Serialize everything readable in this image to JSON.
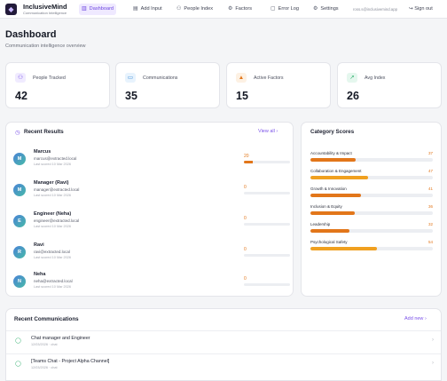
{
  "app": {
    "name": "InclusiveMind",
    "tagline": "Communication Intelligence",
    "logo_glyph": "◆"
  },
  "nav": {
    "items": [
      {
        "label": "Dashboard",
        "icon": "chart-icon",
        "glyph": "▥",
        "active": true
      },
      {
        "label": "Add Input",
        "icon": "document-icon",
        "glyph": "▤",
        "active": false
      },
      {
        "label": "People Index",
        "icon": "people-icon",
        "glyph": "⚇",
        "active": false
      },
      {
        "label": "Factors",
        "icon": "sliders-icon",
        "glyph": "⚙",
        "active": false
      },
      {
        "label": "Error Log",
        "icon": "file-icon",
        "glyph": "▢",
        "active": false
      },
      {
        "label": "Settings",
        "icon": "gear-icon",
        "glyph": "⚙",
        "active": false
      }
    ],
    "user_email": "ross.s@inclusivemind.app",
    "signout_label": "Sign out",
    "signout_glyph": "↪"
  },
  "header": {
    "title": "Dashboard",
    "subtitle": "Communication intelligence overview"
  },
  "stats": [
    {
      "label": "People Tracked",
      "value": "42",
      "icon": "people-icon",
      "glyph": "⚇",
      "color": "#7b52e8",
      "bg": "#f0ebff"
    },
    {
      "label": "Communications",
      "value": "35",
      "icon": "chat-icon",
      "glyph": "▭",
      "color": "#3c8fd8",
      "bg": "#e8f3fd"
    },
    {
      "label": "Active Factors",
      "value": "15",
      "icon": "sliders-icon",
      "glyph": "▲",
      "color": "#e2761a",
      "bg": "#fdf1e3"
    },
    {
      "label": "Avg Index",
      "value": "26",
      "icon": "trend-icon",
      "glyph": "↗",
      "color": "#2faf6d",
      "bg": "#e5f7ee"
    }
  ],
  "recent_results": {
    "title": "Recent Results",
    "view_all": "View all",
    "rows": [
      {
        "initial": "M",
        "name": "Marcus",
        "email": "marcus@extracted.local",
        "date": "Last scored 10 Mar 2026",
        "score": "20",
        "pct": 20
      },
      {
        "initial": "M",
        "name": "Manager (Ravi)",
        "email": "manager@extracted.local",
        "date": "Last scored 10 Mar 2026",
        "score": "0",
        "pct": 0
      },
      {
        "initial": "E",
        "name": "Engineer (Neha)",
        "email": "engineer@extracted.local",
        "date": "Last scored 10 Mar 2026",
        "score": "0",
        "pct": 0
      },
      {
        "initial": "R",
        "name": "Ravi",
        "email": "ravi@extracted.local",
        "date": "Last scored 10 Mar 2026",
        "score": "0",
        "pct": 0
      },
      {
        "initial": "N",
        "name": "Neha",
        "email": "neha@extracted.local",
        "date": "Last scored 10 Mar 2026",
        "score": "0",
        "pct": 0
      }
    ]
  },
  "category_scores": {
    "title": "Category Scores",
    "items": [
      {
        "name": "Accountability & Impact",
        "score": "37",
        "pct": 37,
        "color": "#e2761a"
      },
      {
        "name": "Collaboration & Engagement",
        "score": "47",
        "pct": 47,
        "color": "#f0a020"
      },
      {
        "name": "Growth & Innovation",
        "score": "41",
        "pct": 41,
        "color": "#e2761a"
      },
      {
        "name": "Inclusion & Equity",
        "score": "36",
        "pct": 36,
        "color": "#e2761a"
      },
      {
        "name": "Leadership",
        "score": "32",
        "pct": 32,
        "color": "#e2761a"
      },
      {
        "name": "Psychological Safety",
        "score": "54",
        "pct": 54,
        "color": "#f0a020"
      }
    ]
  },
  "recent_communications": {
    "title": "Recent Communications",
    "add_new": "Add new",
    "items": [
      {
        "title": "Chat manager and Engineer",
        "date": "12/03/2026 · chat",
        "icon": "chat-icon"
      },
      {
        "title": "[Teams Chat - Project Alpha Channel]",
        "date": "12/03/2026 · chat",
        "icon": "chat-icon"
      }
    ]
  }
}
